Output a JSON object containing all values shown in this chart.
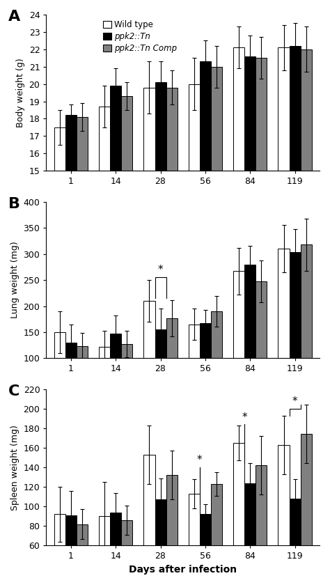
{
  "days": [
    1,
    14,
    28,
    56,
    84,
    119
  ],
  "x_positions": [
    0,
    1,
    2,
    3,
    4,
    5
  ],
  "body_weight": {
    "wild": [
      17.5,
      18.7,
      19.8,
      20.0,
      22.1,
      22.1
    ],
    "ppk2": [
      18.2,
      19.9,
      20.1,
      21.3,
      21.6,
      22.2
    ],
    "comp": [
      18.1,
      19.3,
      19.8,
      21.0,
      21.5,
      22.0
    ],
    "wild_err": [
      1.0,
      1.2,
      1.5,
      1.5,
      1.2,
      1.3
    ],
    "ppk2_err": [
      0.6,
      1.0,
      1.2,
      1.2,
      1.2,
      1.3
    ],
    "comp_err": [
      0.8,
      0.8,
      1.0,
      1.2,
      1.2,
      1.3
    ],
    "ylim": [
      15,
      24
    ],
    "yticks": [
      15,
      16,
      17,
      18,
      19,
      20,
      21,
      22,
      23,
      24
    ],
    "ylabel": "Body weight (g)"
  },
  "lung_weight": {
    "wild": [
      150,
      122,
      210,
      165,
      267,
      310
    ],
    "ppk2": [
      130,
      147,
      155,
      167,
      280,
      303
    ],
    "comp": [
      123,
      127,
      177,
      190,
      248,
      318
    ],
    "wild_err": [
      40,
      30,
      40,
      30,
      45,
      45
    ],
    "ppk2_err": [
      35,
      35,
      40,
      25,
      35,
      45
    ],
    "comp_err": [
      25,
      25,
      35,
      30,
      40,
      50
    ],
    "ylim": [
      100,
      400
    ],
    "yticks": [
      100,
      150,
      200,
      250,
      300,
      350,
      400
    ],
    "ylabel": "Lung weight (mg)"
  },
  "spleen_weight": {
    "wild": [
      92,
      90,
      153,
      113,
      165,
      163
    ],
    "ppk2": [
      91,
      94,
      107,
      92,
      124,
      108
    ],
    "comp": [
      82,
      86,
      132,
      123,
      142,
      174
    ],
    "wild_err": [
      28,
      35,
      30,
      15,
      18,
      30
    ],
    "ppk2_err": [
      25,
      20,
      22,
      10,
      20,
      20
    ],
    "comp_err": [
      15,
      15,
      25,
      12,
      30,
      30
    ],
    "ylim": [
      60,
      220
    ],
    "yticks": [
      60,
      80,
      100,
      120,
      140,
      160,
      180,
      200,
      220
    ],
    "ylabel": "Spleen weight (mg)"
  },
  "bar_colors": [
    "#ffffff",
    "#000000",
    "#808080"
  ],
  "bar_edgecolor": "#000000",
  "bar_width": 0.25,
  "capsize": 2,
  "panel_labels": [
    "A",
    "B",
    "C"
  ],
  "xlabel": "Days after infection",
  "legend_labels": [
    "Wild type",
    "ppk2::Tn",
    "ppk2::Tn Comp"
  ]
}
